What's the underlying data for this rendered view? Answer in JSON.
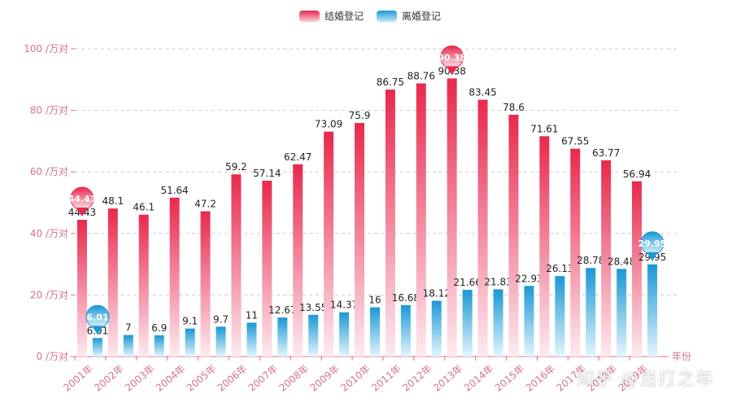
{
  "legend": {
    "marriage_label": "结婚登记",
    "divorce_label": "离婚登记"
  },
  "watermark": "知乎 @当打之年",
  "chart_data": {
    "type": "bar",
    "title": "",
    "xlabel": "年份",
    "ylabel": "",
    "ylim": [
      0,
      100
    ],
    "yticks": [
      0,
      20,
      40,
      60,
      80,
      100
    ],
    "ytick_suffix": " /万对",
    "grid": "horizontal-dashed",
    "legend_position": "top-center",
    "categories": [
      "2001年",
      "2002年",
      "2003年",
      "2004年",
      "2005年",
      "2006年",
      "2007年",
      "2008年",
      "2009年",
      "2010年",
      "2011年",
      "2012年",
      "2013年",
      "2014年",
      "2015年",
      "2016年",
      "2017年",
      "2018年",
      "2019年"
    ],
    "series": [
      {
        "name": "结婚登记",
        "color_top": "#e8294d",
        "color_bottom": "#fdeaf0",
        "values": [
          44.43,
          48.1,
          46.1,
          51.64,
          47.2,
          59.2,
          57.14,
          62.47,
          73.09,
          75.9,
          86.75,
          88.76,
          90.38,
          83.45,
          78.6,
          71.61,
          67.55,
          63.77,
          56.94
        ],
        "markers": [
          {
            "index": 0,
            "label": "44.43",
            "type": "min"
          },
          {
            "index": 12,
            "label": "90.38",
            "type": "max"
          }
        ]
      },
      {
        "name": "离婚登记",
        "color_top": "#1a98d5",
        "color_bottom": "#e4f5fc",
        "values": [
          6.01,
          7,
          6.9,
          9.1,
          9.7,
          11,
          12.67,
          13.55,
          14.37,
          16,
          16.68,
          18.12,
          21.66,
          21.83,
          22.93,
          26.13,
          28.78,
          28.48,
          29.95
        ],
        "markers": [
          {
            "index": 0,
            "label": "6.01",
            "type": "min"
          },
          {
            "index": 18,
            "label": "29.95",
            "type": "max"
          }
        ]
      }
    ],
    "axis_color": "#d4728f"
  }
}
